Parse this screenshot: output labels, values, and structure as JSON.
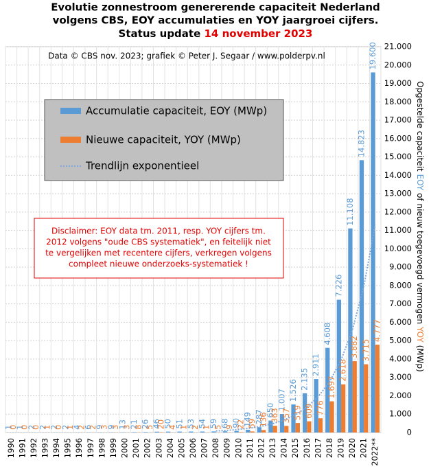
{
  "chart_data": {
    "type": "bar",
    "title_lines": [
      "Evolutie  zonnestroom genererende capaciteit Nederland",
      "volgens CBS, EOY accumulaties  en YOY jaargroei cijfers."
    ],
    "status_label": "Status update ",
    "status_date": "14 november 2023",
    "source": "Data © CBS nov. 2023;  grafiek © Peter J. Segaar / www.polderpv.nl",
    "y_label_parts": [
      "Opgestelde capaciteit ",
      "EOY",
      " of nieuw toegevoegd vermogen ",
      "YOY",
      " (MWp)"
    ],
    "disclaimer": [
      "Disclaimer: EOY data tm. 2011, resp. YOY cijfers tm.",
      "2012 volgens \"oude CBS systematiek\", en feitelijk niet",
      "te vergelijken met recentere cijfers, verkregen volgens",
      "compleet nieuwe onderzoeks-systematiek !"
    ],
    "categories": [
      "1990",
      "1991",
      "1992",
      "1993",
      "1994",
      "1995",
      "1996",
      "1997",
      "1998",
      "1999",
      "2000",
      "2001",
      "2002",
      "2003",
      "2004",
      "2005",
      "2006",
      "2007",
      "2008",
      "2009",
      "2010",
      "2011",
      "2012",
      "2013",
      "2014",
      "2015",
      "2016",
      "2017",
      "2018",
      "2019",
      "2020",
      "2021",
      "2022**"
    ],
    "series": [
      {
        "name": "Accumulatie capaciteit, EOY (MWp)",
        "color": "#5b9bd5",
        "values": [
          1,
          1,
          2,
          2,
          2,
          2,
          4,
          6,
          9,
          9,
          13,
          21,
          26,
          46,
          50,
          51,
          53,
          54,
          59,
          68,
          90,
          149,
          287,
          650,
          1007,
          1526,
          2135,
          2911,
          4608,
          7226,
          11108,
          14823,
          19600
        ],
        "value_labels": [
          "1",
          "1",
          "2",
          "2",
          "2",
          "2",
          "4",
          "6",
          "9",
          "9",
          "13",
          "21",
          "26",
          "46",
          "50",
          "51",
          "53",
          "54",
          "59",
          "68",
          "90",
          "149",
          "287",
          "650",
          "1.007",
          "1.526",
          "2.135",
          "2.911",
          "4.608",
          "7.226",
          "11.108",
          "14.823",
          "19.600"
        ]
      },
      {
        "name": "Nieuwe capaciteit, YOY (MWp)",
        "color": "#ed7d31",
        "values": [
          0,
          0,
          0,
          1,
          0,
          1,
          2,
          2,
          3,
          3,
          3,
          8,
          5,
          20,
          4,
          1,
          2,
          1,
          5,
          9,
          22,
          59,
          136,
          363,
          357,
          519,
          609,
          776,
          1697,
          2618,
          3882,
          3715,
          4777
        ],
        "value_labels": [
          "0",
          "0",
          "0",
          "1",
          "0",
          "1",
          "2",
          "2",
          "3",
          "3",
          "3",
          "8",
          "5",
          "20",
          "4",
          "1",
          "2",
          "1",
          "5",
          "9",
          "22",
          "59",
          "136",
          "363",
          "357",
          "519",
          "609",
          "776",
          "1.697",
          "2.618",
          "3.882",
          "3.715",
          "4.777"
        ]
      },
      {
        "name": "Trendlijn exponentieel",
        "color": "#7fa7d9",
        "line": "dotted",
        "values": [
          null,
          null,
          null,
          null,
          null,
          null,
          null,
          null,
          null,
          null,
          null,
          null,
          null,
          null,
          null,
          null,
          null,
          null,
          83,
          118,
          168,
          239,
          339,
          481,
          684,
          971,
          1378,
          1957,
          2779,
          3947,
          5604,
          7958,
          11300
        ]
      }
    ],
    "ylim": [
      0,
      21000
    ],
    "yticks": [
      0,
      {
        "value": 1000,
        "label": "1.000"
      },
      {
        "value": 2000,
        "label": "2.000"
      },
      {
        "value": 3000,
        "label": "3.000"
      },
      {
        "value": 4000,
        "label": "4.000"
      },
      {
        "value": 5000,
        "label": "5.000"
      },
      {
        "value": 6000,
        "label": "6.000"
      },
      {
        "value": 7000,
        "label": "7.000"
      },
      {
        "value": 8000,
        "label": "8.000"
      },
      {
        "value": 9000,
        "label": "9.000"
      },
      {
        "value": 10000,
        "label": "10.000"
      },
      {
        "value": 11000,
        "label": "11.000"
      },
      {
        "value": 12000,
        "label": "12.000"
      },
      {
        "value": 13000,
        "label": "13.000"
      },
      {
        "value": 14000,
        "label": "14.000"
      },
      {
        "value": 15000,
        "label": "15.000"
      },
      {
        "value": 16000,
        "label": "16.000"
      },
      {
        "value": 17000,
        "label": "17.000"
      },
      {
        "value": 18000,
        "label": "18.000"
      },
      {
        "value": 19000,
        "label": "19.000"
      },
      {
        "value": 20000,
        "label": "20.000"
      },
      {
        "value": 21000,
        "label": "21.000"
      }
    ],
    "grid": true
  }
}
